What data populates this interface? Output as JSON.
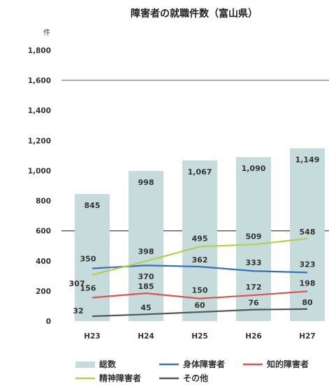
{
  "chart_data": {
    "type": "bar",
    "title": "障害者の就職件数（富山県）",
    "ylabel": "件",
    "ylim": [
      0,
      1800
    ],
    "yticks": [
      "1,800",
      "1,600",
      "1,400",
      "1,200",
      "1,000",
      "800",
      "600",
      "400",
      "200",
      "0"
    ],
    "categories": [
      "H23",
      "H24",
      "H25",
      "H26",
      "H27"
    ],
    "grid": false,
    "legend_position": "bottom",
    "series": [
      {
        "name": "総数",
        "kind": "bar",
        "color": "#c6dcdc",
        "values": [
          845,
          998,
          1067,
          1090,
          1149
        ],
        "labels": [
          "845",
          "998",
          "1,067",
          "1,090",
          "1,149"
        ]
      },
      {
        "name": "身体障害者",
        "kind": "line",
        "color": "#3a6fb8",
        "values": [
          350,
          370,
          362,
          333,
          323
        ],
        "labels": [
          "350",
          "370",
          "362",
          "333",
          "323"
        ]
      },
      {
        "name": "知的障害者",
        "kind": "line",
        "color": "#d9534f",
        "values": [
          156,
          185,
          150,
          172,
          198
        ],
        "labels": [
          "156",
          "185",
          "150",
          "172",
          "198"
        ]
      },
      {
        "name": "精神障害者",
        "kind": "line",
        "color": "#b5cf4a",
        "values": [
          307,
          398,
          495,
          509,
          548
        ],
        "labels": [
          "307",
          "398",
          "495",
          "509",
          "548"
        ]
      },
      {
        "name": "その他",
        "kind": "line",
        "color": "#555555",
        "values": [
          32,
          45,
          60,
          76,
          80
        ],
        "labels": [
          "32",
          "45",
          "60",
          "76",
          "80"
        ]
      }
    ],
    "reference_lines": [
      1600,
      600
    ]
  }
}
